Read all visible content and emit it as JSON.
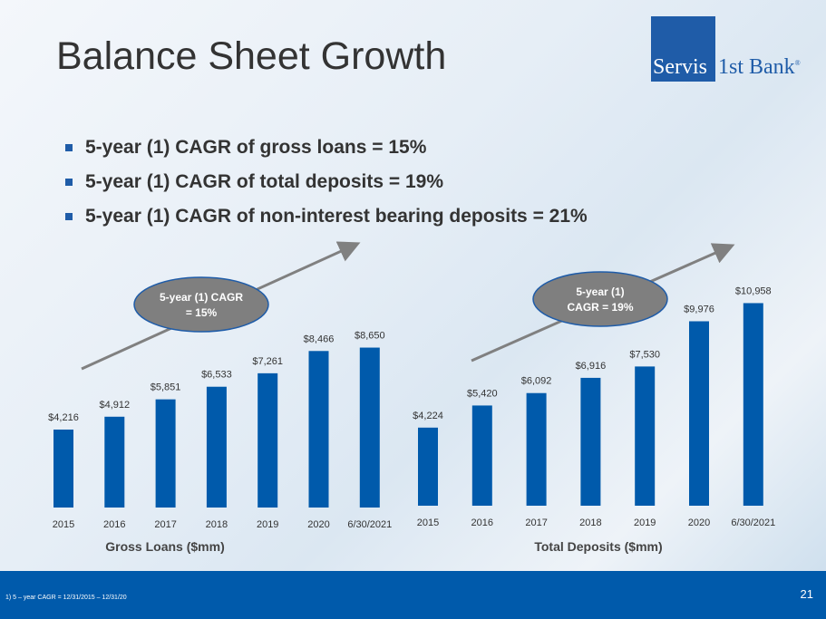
{
  "title": "Balance Sheet Growth",
  "logo": {
    "left": "Servis",
    "right": "1st Bank",
    "mark": "®"
  },
  "bullets": [
    "5-year (1) CAGR of gross loans = 15%",
    "5-year (1) CAGR of total deposits = 19%",
    "5-year (1) CAGR of non-interest bearing deposits = 21%"
  ],
  "colors": {
    "bar": "#005aab",
    "ellipse": "#7f7f7f",
    "arrow": "#808080"
  },
  "chart_data": [
    {
      "type": "bar",
      "title": "Gross Loans ($mm)",
      "callout": [
        "5-year (1) CAGR",
        "= 15%"
      ],
      "categories": [
        "2015",
        "2016",
        "2017",
        "2018",
        "2019",
        "2020",
        "6/30/2021"
      ],
      "values": [
        4216,
        4912,
        5851,
        6533,
        7261,
        8466,
        8650
      ],
      "labels": [
        "$4,216",
        "$4,912",
        "$5,851",
        "$6,533",
        "$7,261",
        "$8,466",
        "$8,650"
      ]
    },
    {
      "type": "bar",
      "title": "Total Deposits ($mm)",
      "callout": [
        "5-year (1)",
        "CAGR = 19%"
      ],
      "categories": [
        "2015",
        "2016",
        "2017",
        "2018",
        "2019",
        "2020",
        "6/30/2021"
      ],
      "values": [
        4224,
        5420,
        6092,
        6916,
        7530,
        9976,
        10958
      ],
      "labels": [
        "$4,224",
        "$5,420",
        "$6,092",
        "$6,916",
        "$7,530",
        "$9,976",
        "$10,958"
      ]
    }
  ],
  "footnote": "1)     5 – year CAGR = 12/31/2015 – 12/31/20",
  "page": "21"
}
